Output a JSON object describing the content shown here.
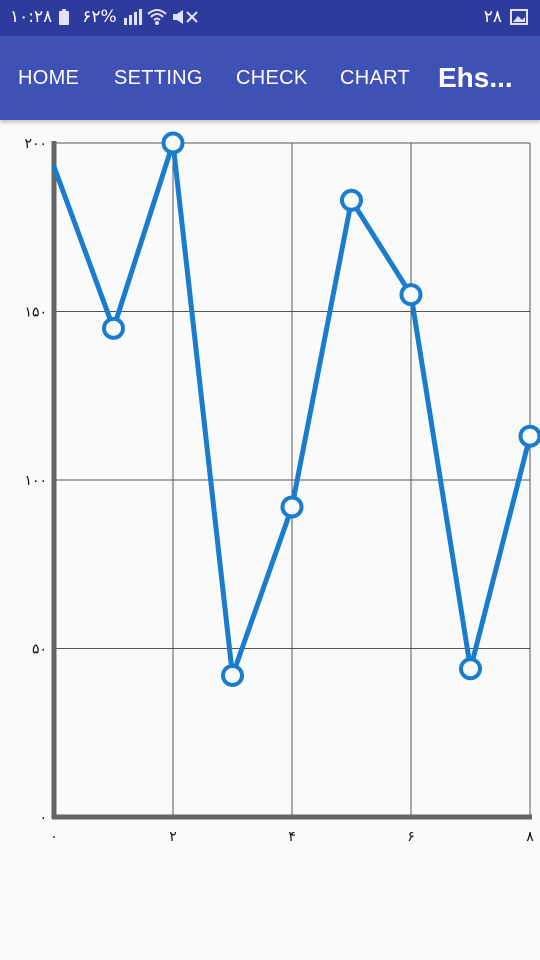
{
  "status_bar": {
    "time": "۱۰:۲۸",
    "battery": "۶۲%",
    "date_number": "۲۸"
  },
  "nav": {
    "items": [
      {
        "id": "home",
        "label": "HOME"
      },
      {
        "id": "setting",
        "label": "SETTING"
      },
      {
        "id": "check",
        "label": "CHECK"
      },
      {
        "id": "chart",
        "label": "CHART"
      }
    ],
    "title": "Ehs..."
  },
  "colors": {
    "status_bar": "#2e3b9c",
    "app_bar": "#3f51b5",
    "series": "#1a7ccc"
  },
  "chart_data": {
    "type": "line",
    "title": "",
    "xlabel": "",
    "ylabel": "",
    "xlim": [
      0,
      8
    ],
    "ylim": [
      0,
      200
    ],
    "grid": true,
    "x_ticks": [
      0,
      2,
      4,
      6,
      8
    ],
    "x_tick_labels": [
      "۰",
      "۲",
      "۴",
      "۶",
      "۸"
    ],
    "y_ticks": [
      0,
      50,
      100,
      150,
      200
    ],
    "y_tick_labels": [
      "۰",
      "۵۰",
      "۱۰۰",
      "۱۵۰",
      "۲۰۰"
    ],
    "series": [
      {
        "x": [
          0,
          1,
          2,
          3,
          4,
          5,
          6,
          7,
          8
        ],
        "y": [
          193,
          145,
          200,
          42,
          92,
          183,
          155,
          44,
          113
        ],
        "markers_from_index": 1
      }
    ]
  }
}
